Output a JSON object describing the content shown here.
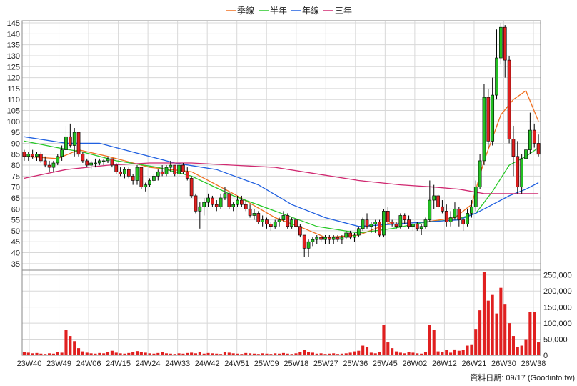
{
  "chart_data": {
    "type": "candlestick",
    "legend": [
      {
        "name": "季線",
        "color": "#f07020"
      },
      {
        "name": "半年",
        "color": "#28c828"
      },
      {
        "name": "年線",
        "color": "#2060e0"
      },
      {
        "name": "三年",
        "color": "#d02870"
      }
    ],
    "legend_position": "top-center",
    "price_axis": {
      "ticks": [
        "35",
        "40",
        "45",
        "50",
        "55",
        "60",
        "65",
        "70",
        "75",
        "80",
        "85",
        "90",
        "95",
        "100",
        "105",
        "110",
        "115",
        "120",
        "125",
        "130",
        "135",
        "140",
        "145"
      ],
      "ylim": [
        32,
        146
      ]
    },
    "volume_axis": {
      "ticks": [
        "0",
        "50,000",
        "100,000",
        "150,000",
        "200,000",
        "250,000"
      ],
      "ylim": [
        0,
        265000
      ]
    },
    "x_ticks": [
      "23W40",
      "23W49",
      "24W06",
      "24W15",
      "24W24",
      "24W33",
      "24W42",
      "24W51",
      "25W09",
      "25W18",
      "25W27",
      "25W36",
      "25W45",
      "26W02",
      "26W12",
      "26W21",
      "26W30",
      "26W38"
    ],
    "grid": true,
    "up_color": "#22c022",
    "down_color": "#e02020",
    "volume_color": "#e02020",
    "footer": "資料日期: 09/17  (Goodinfo.tw)",
    "candles_ohlc": [
      [
        86,
        87,
        82,
        84
      ],
      [
        84,
        86,
        82,
        85
      ],
      [
        85,
        87,
        83,
        84
      ],
      [
        84,
        86,
        82,
        85
      ],
      [
        85,
        86,
        81,
        82
      ],
      [
        82,
        84,
        79,
        80
      ],
      [
        80,
        82,
        77,
        79
      ],
      [
        79,
        82,
        77,
        81
      ],
      [
        81,
        85,
        80,
        84
      ],
      [
        84,
        89,
        82,
        87
      ],
      [
        87,
        98,
        85,
        93
      ],
      [
        93,
        99,
        88,
        89
      ],
      [
        89,
        97,
        84,
        95
      ],
      [
        95,
        95,
        84,
        85
      ],
      [
        85,
        86,
        81,
        82
      ],
      [
        82,
        83,
        79,
        80
      ],
      [
        80,
        82,
        78,
        81
      ],
      [
        81,
        83,
        79,
        81
      ],
      [
        81,
        83,
        80,
        82
      ],
      [
        82,
        83,
        80,
        82
      ],
      [
        82,
        84,
        81,
        83
      ],
      [
        83,
        83,
        79,
        80
      ],
      [
        80,
        81,
        76,
        77
      ],
      [
        77,
        79,
        75,
        76
      ],
      [
        76,
        79,
        74,
        78
      ],
      [
        78,
        79,
        74,
        75
      ],
      [
        75,
        76,
        71,
        73
      ],
      [
        73,
        80,
        71,
        79
      ],
      [
        79,
        79,
        69,
        70
      ],
      [
        70,
        72,
        68,
        71
      ],
      [
        71,
        74,
        70,
        73
      ],
      [
        73,
        76,
        72,
        75
      ],
      [
        75,
        78,
        73,
        77
      ],
      [
        77,
        80,
        75,
        76
      ],
      [
        76,
        80,
        75,
        79
      ],
      [
        79,
        82,
        77,
        80
      ],
      [
        80,
        80,
        75,
        76
      ],
      [
        76,
        81,
        75,
        80
      ],
      [
        80,
        81,
        76,
        77
      ],
      [
        77,
        79,
        73,
        74
      ],
      [
        74,
        75,
        65,
        66
      ],
      [
        66,
        67,
        58,
        59
      ],
      [
        59,
        63,
        51,
        61
      ],
      [
        61,
        65,
        57,
        63
      ],
      [
        63,
        67,
        61,
        65
      ],
      [
        65,
        66,
        61,
        62
      ],
      [
        62,
        64,
        59,
        61
      ],
      [
        61,
        67,
        60,
        65
      ],
      [
        65,
        70,
        64,
        67
      ],
      [
        67,
        68,
        60,
        61
      ],
      [
        61,
        63,
        59,
        62
      ],
      [
        62,
        66,
        61,
        64
      ],
      [
        64,
        66,
        61,
        62
      ],
      [
        62,
        64,
        59,
        60
      ],
      [
        60,
        62,
        56,
        57
      ],
      [
        57,
        60,
        55,
        58
      ],
      [
        58,
        59,
        53,
        54
      ],
      [
        54,
        57,
        52,
        55
      ],
      [
        55,
        56,
        51,
        53
      ],
      [
        53,
        54,
        50,
        52
      ],
      [
        52,
        55,
        51,
        54
      ],
      [
        54,
        56,
        52,
        55
      ],
      [
        55,
        59,
        54,
        57
      ],
      [
        57,
        58,
        51,
        52
      ],
      [
        52,
        56,
        51,
        55
      ],
      [
        55,
        57,
        51,
        52
      ],
      [
        52,
        53,
        47,
        48
      ],
      [
        48,
        48,
        38,
        42
      ],
      [
        42,
        46,
        38,
        45
      ],
      [
        45,
        47,
        43,
        46
      ],
      [
        46,
        48,
        44,
        47
      ],
      [
        47,
        48,
        45,
        46
      ],
      [
        46,
        48,
        44,
        47
      ],
      [
        47,
        48,
        44,
        46
      ],
      [
        46,
        48,
        44,
        47
      ],
      [
        47,
        48,
        45,
        46
      ],
      [
        46,
        48,
        44,
        47
      ],
      [
        47,
        50,
        46,
        49
      ],
      [
        49,
        50,
        46,
        47
      ],
      [
        47,
        49,
        45,
        48
      ],
      [
        48,
        52,
        47,
        51
      ],
      [
        51,
        56,
        50,
        55
      ],
      [
        55,
        58,
        51,
        52
      ],
      [
        52,
        54,
        49,
        53
      ],
      [
        53,
        55,
        49,
        54
      ],
      [
        54,
        55,
        47,
        48
      ],
      [
        48,
        60,
        47,
        59
      ],
      [
        59,
        61,
        53,
        54
      ],
      [
        54,
        55,
        52,
        53
      ],
      [
        53,
        54,
        51,
        52
      ],
      [
        52,
        58,
        51,
        57
      ],
      [
        57,
        58,
        53,
        55
      ],
      [
        55,
        57,
        51,
        52
      ],
      [
        52,
        54,
        50,
        53
      ],
      [
        53,
        54,
        50,
        51
      ],
      [
        51,
        53,
        48,
        52
      ],
      [
        52,
        56,
        51,
        55
      ],
      [
        55,
        73,
        54,
        64
      ],
      [
        64,
        71,
        60,
        66
      ],
      [
        66,
        67,
        60,
        61
      ],
      [
        61,
        64,
        58,
        59
      ],
      [
        59,
        62,
        52,
        54
      ],
      [
        54,
        59,
        52,
        56
      ],
      [
        56,
        63,
        55,
        60
      ],
      [
        60,
        61,
        52,
        55
      ],
      [
        55,
        56,
        50,
        53
      ],
      [
        53,
        60,
        52,
        58
      ],
      [
        58,
        64,
        56,
        61
      ],
      [
        61,
        73,
        59,
        70
      ],
      [
        70,
        85,
        69,
        82
      ],
      [
        82,
        117,
        80,
        111
      ],
      [
        111,
        115,
        88,
        91
      ],
      [
        91,
        120,
        89,
        112
      ],
      [
        112,
        142,
        110,
        129
      ],
      [
        129,
        145,
        126,
        143
      ],
      [
        143,
        144,
        120,
        128
      ],
      [
        128,
        130,
        90,
        92
      ],
      [
        92,
        98,
        75,
        84
      ],
      [
        84,
        91,
        67,
        70
      ],
      [
        70,
        85,
        67,
        83
      ],
      [
        83,
        94,
        81,
        87
      ],
      [
        87,
        104,
        85,
        96
      ],
      [
        96,
        99,
        88,
        90
      ],
      [
        90,
        94,
        84,
        85
      ]
    ],
    "volumes": [
      9000,
      8000,
      6000,
      7000,
      5000,
      4000,
      6000,
      5000,
      9000,
      8000,
      78000,
      60000,
      44000,
      22000,
      12000,
      8000,
      6000,
      5000,
      7000,
      6000,
      10000,
      14000,
      8000,
      6000,
      5000,
      7000,
      11000,
      13000,
      10000,
      8000,
      6000,
      5000,
      7000,
      9000,
      6000,
      5000,
      4000,
      6000,
      5000,
      7000,
      8000,
      6000,
      9000,
      5000,
      7000,
      6000,
      5000,
      4000,
      9000,
      8000,
      6000,
      5000,
      4000,
      7000,
      6000,
      5000,
      4000,
      6000,
      5000,
      4000,
      6000,
      5000,
      7000,
      5000,
      4000,
      6000,
      9000,
      16000,
      10000,
      8000,
      5000,
      6000,
      4000,
      5000,
      6000,
      4000,
      5000,
      6000,
      8000,
      12000,
      14000,
      30000,
      26000,
      8000,
      6000,
      9000,
      95000,
      40000,
      22000,
      12000,
      8000,
      6000,
      10000,
      8000,
      6000,
      5000,
      10000,
      95000,
      80000,
      12000,
      10000,
      16000,
      8000,
      18000,
      14000,
      16000,
      30000,
      34000,
      82000,
      140000,
      260000,
      170000,
      190000,
      130000,
      210000,
      160000,
      100000,
      60000,
      25000,
      30000,
      50000,
      135000,
      135000,
      40000
    ],
    "ma_series": [
      {
        "name": "季線",
        "values": [
          [
            0,
            84
          ],
          [
            8,
            83
          ],
          [
            13,
            87
          ],
          [
            20,
            84
          ],
          [
            30,
            79
          ],
          [
            40,
            77
          ],
          [
            50,
            67
          ],
          [
            60,
            56
          ],
          [
            67,
            51
          ],
          [
            72,
            47
          ],
          [
            80,
            48
          ],
          [
            88,
            54
          ],
          [
            96,
            54
          ],
          [
            103,
            56
          ],
          [
            107,
            62
          ],
          [
            110,
            82
          ],
          [
            114,
            103
          ],
          [
            117,
            110
          ],
          [
            120,
            114
          ],
          [
            123,
            100
          ]
        ]
      },
      {
        "name": "半年",
        "values": [
          [
            0,
            91
          ],
          [
            8,
            88
          ],
          [
            14,
            86
          ],
          [
            22,
            82
          ],
          [
            32,
            79
          ],
          [
            40,
            75
          ],
          [
            50,
            66
          ],
          [
            60,
            59
          ],
          [
            70,
            52
          ],
          [
            80,
            49
          ],
          [
            88,
            51
          ],
          [
            96,
            54
          ],
          [
            103,
            55
          ],
          [
            108,
            58
          ],
          [
            112,
            68
          ],
          [
            116,
            80
          ],
          [
            120,
            84
          ],
          [
            123,
            88
          ]
        ]
      },
      {
        "name": "年線",
        "values": [
          [
            0,
            93
          ],
          [
            10,
            90
          ],
          [
            18,
            90
          ],
          [
            26,
            86
          ],
          [
            36,
            81
          ],
          [
            46,
            78
          ],
          [
            56,
            71
          ],
          [
            64,
            62
          ],
          [
            72,
            56
          ],
          [
            80,
            52
          ],
          [
            88,
            53
          ],
          [
            96,
            54
          ],
          [
            104,
            55
          ],
          [
            108,
            58
          ],
          [
            112,
            62
          ],
          [
            116,
            66
          ],
          [
            120,
            69
          ],
          [
            123,
            72
          ]
        ]
      },
      {
        "name": "三年",
        "values": [
          [
            0,
            74
          ],
          [
            10,
            78
          ],
          [
            20,
            80
          ],
          [
            30,
            81
          ],
          [
            40,
            81
          ],
          [
            50,
            80
          ],
          [
            60,
            79
          ],
          [
            70,
            76
          ],
          [
            80,
            73
          ],
          [
            90,
            71
          ],
          [
            98,
            70
          ],
          [
            104,
            69
          ],
          [
            110,
            67
          ],
          [
            118,
            67
          ],
          [
            123,
            67
          ]
        ]
      }
    ]
  }
}
